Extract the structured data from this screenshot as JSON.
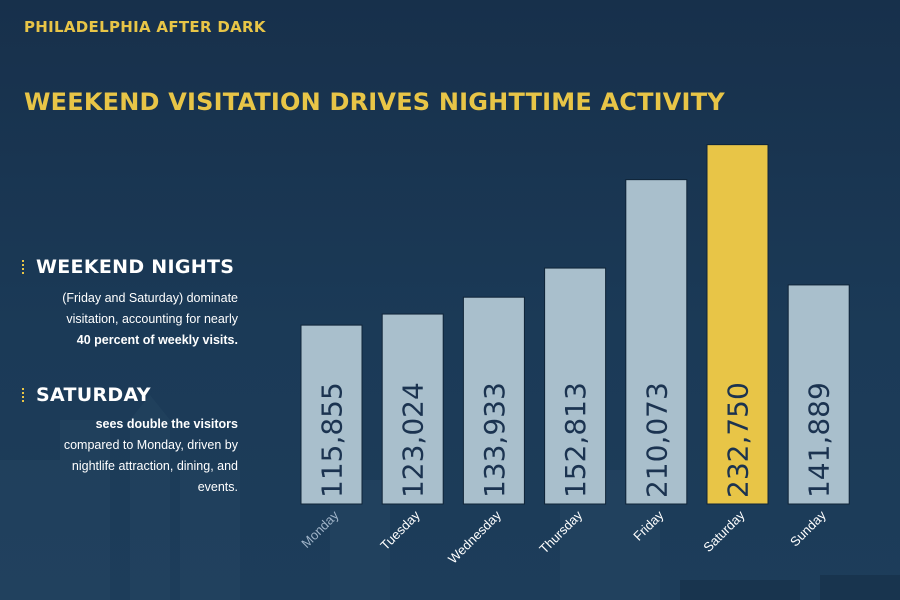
{
  "header": {
    "brand": "PHILADELPHIA AFTER DARK",
    "title": "WEEKEND VISITATION DRIVES NIGHTTIME ACTIVITY"
  },
  "notes": [
    {
      "heading": "WEEKEND NIGHTS",
      "text": "(Friday and Saturday) dominate visitation, accounting for nearly",
      "bold": "40 percent of weekly visits."
    },
    {
      "heading": "SATURDAY",
      "bold": "sees double the visitors",
      "text": "compared to Monday, driven by  nightlife attraction, dining, and events."
    }
  ],
  "colors": {
    "bar": "#a9bfcc",
    "highlight": "#e8c547",
    "label": "#1b3350",
    "accent": "#e8c547"
  },
  "chart_data": {
    "type": "bar",
    "title": "WEEKEND VISITATION DRIVES NIGHTTIME ACTIVITY",
    "categories": [
      "Monday",
      "Tuesday",
      "Wednesday",
      "Thursday",
      "Friday",
      "Saturday",
      "Sunday"
    ],
    "values": [
      115855,
      123024,
      133933,
      152813,
      210073,
      232750,
      141889
    ],
    "value_labels": [
      "115,855",
      "123,024",
      "133,933",
      "152,813",
      "210,073",
      "232,750",
      "141,889"
    ],
    "highlight": "Saturday",
    "xlabel": "",
    "ylabel": "",
    "ylim": [
      0,
      250000
    ],
    "grid": false
  }
}
